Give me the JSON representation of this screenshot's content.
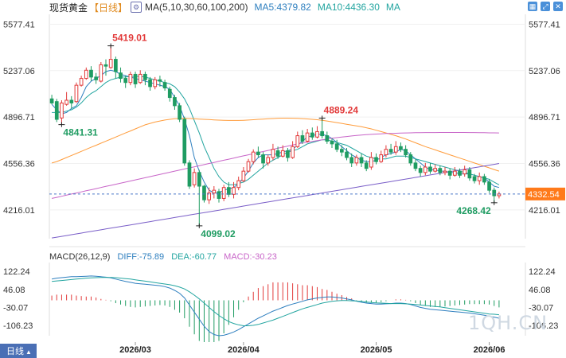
{
  "header": {
    "title": "现货黄金",
    "period": "【日线】",
    "indicator": "MA(5,10,30,60,100,200)",
    "ma5": "MA5:4379.82",
    "ma10": "MA10:4436.30",
    "ma": "MA"
  },
  "macd_header": {
    "name": "MACD(26,12,9)",
    "diff": "DIFF:-75.89",
    "dea": "DEA:-60.77",
    "macd": "MACD:-30.23"
  },
  "tab": {
    "label": "日线"
  },
  "watermark": "1QH.CN",
  "colors": {
    "up": "#e23a3a",
    "down": "#1f9c62",
    "ma5": "#2e7fbf",
    "ma10": "#23a5a0",
    "ma30": "#ff9c3b",
    "ma60": "#c865c8",
    "ma100": "#7a5ec8",
    "last_price_tag": "#ff7a1a"
  },
  "chart_data": [
    {
      "type": "candlestick",
      "title": "现货黄金",
      "x_labels": [
        "2026/03",
        "2026/04",
        "2026/05",
        "2026/06"
      ],
      "y_ticks": [
        5577.41,
        5237.06,
        4896.71,
        4556.36,
        4216.01
      ],
      "ylim": [
        4005,
        5650
      ],
      "last_price": "4332.54",
      "annotations": [
        {
          "label": "5419.01",
          "kind": "high"
        },
        {
          "label": "4841.31",
          "kind": "low"
        },
        {
          "label": "4889.24",
          "kind": "high"
        },
        {
          "label": "4099.02",
          "kind": "low"
        },
        {
          "label": "4268.42",
          "kind": "low"
        }
      ],
      "candles": [
        [
          5030,
          5000,
          5060,
          4990
        ],
        [
          5010,
          4880,
          5030,
          4860
        ],
        [
          4890,
          5000,
          5020,
          4840
        ],
        [
          4990,
          5020,
          5080,
          4980
        ],
        [
          5020,
          5000,
          5050,
          4960
        ],
        [
          5010,
          5130,
          5150,
          5000
        ],
        [
          5130,
          5180,
          5200,
          5120
        ],
        [
          5180,
          5240,
          5260,
          5170
        ],
        [
          5240,
          5190,
          5270,
          5160
        ],
        [
          5190,
          5170,
          5220,
          5140
        ],
        [
          5160,
          5280,
          5300,
          5150
        ],
        [
          5280,
          5270,
          5320,
          5200
        ],
        [
          5260,
          5320,
          5419,
          5250
        ],
        [
          5320,
          5230,
          5340,
          5180
        ],
        [
          5220,
          5180,
          5260,
          5150
        ],
        [
          5180,
          5150,
          5200,
          5110
        ],
        [
          5150,
          5210,
          5230,
          5130
        ],
        [
          5210,
          5140,
          5230,
          5110
        ],
        [
          5150,
          5210,
          5240,
          5140
        ],
        [
          5210,
          5170,
          5230,
          5130
        ],
        [
          5170,
          5120,
          5190,
          5090
        ],
        [
          5120,
          5170,
          5190,
          5100
        ],
        [
          5170,
          5160,
          5200,
          5120
        ],
        [
          5150,
          5110,
          5170,
          5090
        ],
        [
          5100,
          5040,
          5120,
          5010
        ],
        [
          5040,
          4980,
          5060,
          4950
        ],
        [
          4980,
          4880,
          5000,
          4860
        ],
        [
          4880,
          4560,
          4900,
          4540
        ],
        [
          4560,
          4390,
          4580,
          4370
        ],
        [
          4400,
          4490,
          4520,
          4380
        ],
        [
          4490,
          4390,
          4510,
          4099
        ],
        [
          4390,
          4290,
          4400,
          4270
        ],
        [
          4290,
          4340,
          4380,
          4260
        ],
        [
          4340,
          4360,
          4390,
          4300
        ],
        [
          4350,
          4300,
          4370,
          4270
        ],
        [
          4300,
          4380,
          4400,
          4280
        ],
        [
          4380,
          4330,
          4420,
          4310
        ],
        [
          4330,
          4380,
          4420,
          4300
        ],
        [
          4380,
          4430,
          4460,
          4360
        ],
        [
          4430,
          4500,
          4530,
          4420
        ],
        [
          4500,
          4570,
          4590,
          4490
        ],
        [
          4570,
          4640,
          4660,
          4550
        ],
        [
          4640,
          4620,
          4680,
          4600
        ],
        [
          4620,
          4560,
          4640,
          4520
        ],
        [
          4560,
          4600,
          4620,
          4540
        ],
        [
          4600,
          4660,
          4700,
          4580
        ],
        [
          4650,
          4610,
          4680,
          4590
        ],
        [
          4610,
          4650,
          4690,
          4600
        ],
        [
          4650,
          4600,
          4670,
          4570
        ],
        [
          4600,
          4680,
          4720,
          4590
        ],
        [
          4680,
          4760,
          4790,
          4670
        ],
        [
          4760,
          4720,
          4800,
          4700
        ],
        [
          4720,
          4780,
          4810,
          4710
        ],
        [
          4780,
          4750,
          4820,
          4730
        ],
        [
          4750,
          4790,
          4830,
          4740
        ],
        [
          4790,
          4760,
          4889,
          4740
        ],
        [
          4760,
          4720,
          4790,
          4700
        ],
        [
          4720,
          4700,
          4740,
          4670
        ],
        [
          4700,
          4660,
          4730,
          4640
        ],
        [
          4660,
          4640,
          4690,
          4610
        ],
        [
          4640,
          4600,
          4670,
          4580
        ],
        [
          4600,
          4560,
          4630,
          4530
        ],
        [
          4560,
          4600,
          4620,
          4540
        ],
        [
          4600,
          4560,
          4630,
          4530
        ],
        [
          4560,
          4520,
          4580,
          4500
        ],
        [
          4530,
          4600,
          4640,
          4510
        ],
        [
          4600,
          4570,
          4630,
          4550
        ],
        [
          4570,
          4620,
          4650,
          4560
        ],
        [
          4620,
          4660,
          4690,
          4600
        ],
        [
          4660,
          4640,
          4700,
          4620
        ],
        [
          4640,
          4680,
          4720,
          4620
        ],
        [
          4680,
          4660,
          4710,
          4640
        ],
        [
          4660,
          4620,
          4690,
          4600
        ],
        [
          4620,
          4560,
          4640,
          4540
        ],
        [
          4560,
          4520,
          4590,
          4500
        ],
        [
          4520,
          4490,
          4540,
          4460
        ],
        [
          4490,
          4530,
          4560,
          4470
        ],
        [
          4530,
          4500,
          4560,
          4480
        ],
        [
          4500,
          4520,
          4550,
          4490
        ],
        [
          4520,
          4490,
          4540,
          4470
        ],
        [
          4490,
          4500,
          4530,
          4470
        ],
        [
          4500,
          4470,
          4520,
          4440
        ],
        [
          4470,
          4500,
          4530,
          4460
        ],
        [
          4500,
          4470,
          4520,
          4450
        ],
        [
          4480,
          4510,
          4540,
          4460
        ],
        [
          4510,
          4450,
          4530,
          4430
        ],
        [
          4460,
          4430,
          4480,
          4410
        ],
        [
          4430,
          4460,
          4490,
          4400
        ],
        [
          4460,
          4420,
          4480,
          4400
        ],
        [
          4420,
          4360,
          4440,
          4340
        ],
        [
          4360,
          4320,
          4380,
          4268
        ],
        [
          4320,
          4333,
          4350,
          4300
        ]
      ],
      "ma_lines": {
        "MA5": [
          4990,
          4950,
          4920,
          4930,
          4960,
          4980,
          5040,
          5120,
          5160,
          5180,
          5200,
          5230,
          5240,
          5230,
          5210,
          5200,
          5190,
          5180,
          5170,
          5160,
          5150,
          5140,
          5130,
          5120,
          5100,
          5040,
          4980,
          4880,
          4760,
          4600,
          4500,
          4420,
          4360,
          4340,
          4340,
          4360,
          4370,
          4380,
          4410,
          4450,
          4500,
          4560,
          4600,
          4620,
          4620,
          4620,
          4630,
          4640,
          4650,
          4660,
          4690,
          4720,
          4750,
          4760,
          4770,
          4770,
          4760,
          4740,
          4710,
          4680,
          4650,
          4620,
          4600,
          4580,
          4570,
          4570,
          4580,
          4600,
          4620,
          4630,
          4640,
          4660,
          4650,
          4620,
          4590,
          4560,
          4530,
          4510,
          4510,
          4500,
          4500,
          4490,
          4490,
          4480,
          4480,
          4480,
          4470,
          4460,
          4450,
          4420,
          4390,
          4380
        ],
        "MA10": [
          4930,
          4930,
          4930,
          4940,
          4950,
          4970,
          5000,
          5040,
          5070,
          5090,
          5120,
          5150,
          5170,
          5180,
          5190,
          5190,
          5195,
          5195,
          5195,
          5190,
          5180,
          5170,
          5160,
          5150,
          5140,
          5120,
          5080,
          5030,
          4960,
          4870,
          4780,
          4680,
          4600,
          4520,
          4460,
          4420,
          4400,
          4400,
          4410,
          4420,
          4440,
          4470,
          4500,
          4530,
          4560,
          4580,
          4600,
          4620,
          4640,
          4650,
          4660,
          4680,
          4700,
          4710,
          4720,
          4730,
          4730,
          4720,
          4710,
          4700,
          4690,
          4670,
          4650,
          4630,
          4610,
          4600,
          4590,
          4590,
          4590,
          4600,
          4610,
          4610,
          4610,
          4600,
          4590,
          4580,
          4570,
          4560,
          4550,
          4540,
          4530,
          4520,
          4510,
          4500,
          4490,
          4480,
          4470,
          4460,
          4450,
          4440,
          4420,
          4400
        ],
        "MA30": [
          4560,
          4570,
          4585,
          4600,
          4615,
          4630,
          4645,
          4660,
          4675,
          4690,
          4705,
          4720,
          4735,
          4750,
          4765,
          4780,
          4795,
          4810,
          4825,
          4840,
          4850,
          4860,
          4868,
          4875,
          4880,
          4884,
          4886,
          4887,
          4886,
          4884,
          4882,
          4880,
          4878,
          4876,
          4874,
          4873,
          4872,
          4872,
          4872,
          4873,
          4875,
          4877,
          4880,
          4882,
          4884,
          4886,
          4888,
          4889,
          4889,
          4888,
          4887,
          4885,
          4883,
          4880,
          4877,
          4873,
          4868,
          4862,
          4856,
          4850,
          4844,
          4838,
          4832,
          4826,
          4818,
          4810,
          4800,
          4790,
          4780,
          4770,
          4760,
          4748,
          4736,
          4722,
          4708,
          4694,
          4680,
          4668,
          4656,
          4644,
          4632,
          4620,
          4608,
          4596,
          4584,
          4572,
          4560,
          4548,
          4536,
          4524,
          4512,
          4500
        ],
        "MA60": [
          4300,
          4308,
          4316,
          4324,
          4332,
          4340,
          4348,
          4356,
          4364,
          4372,
          4380,
          4388,
          4396,
          4404,
          4412,
          4420,
          4428,
          4436,
          4444,
          4452,
          4460,
          4468,
          4476,
          4484,
          4492,
          4500,
          4508,
          4516,
          4524,
          4532,
          4540,
          4548,
          4556,
          4564,
          4572,
          4580,
          4588,
          4596,
          4604,
          4612,
          4620,
          4628,
          4636,
          4644,
          4652,
          4660,
          4668,
          4676,
          4684,
          4692,
          4700,
          4706,
          4712,
          4718,
          4724,
          4730,
          4736,
          4741,
          4746,
          4750,
          4754,
          4758,
          4762,
          4765,
          4768,
          4770,
          4772,
          4774,
          4776,
          4777,
          4778,
          4779,
          4780,
          4781,
          4782,
          4782,
          4783,
          4783,
          4783,
          4784,
          4784,
          4784,
          4784,
          4784,
          4784,
          4783,
          4783,
          4782,
          4782,
          4781,
          4781,
          4780
        ],
        "MA100": [
          4010,
          4016,
          4022,
          4028,
          4034,
          4040,
          4046,
          4052,
          4058,
          4064,
          4070,
          4076,
          4082,
          4088,
          4094,
          4100,
          4106,
          4112,
          4118,
          4124,
          4130,
          4136,
          4142,
          4148,
          4154,
          4160,
          4166,
          4172,
          4178,
          4184,
          4190,
          4196,
          4202,
          4208,
          4214,
          4220,
          4226,
          4232,
          4238,
          4244,
          4250,
          4256,
          4262,
          4268,
          4274,
          4280,
          4286,
          4292,
          4298,
          4304,
          4310,
          4316,
          4322,
          4328,
          4334,
          4340,
          4346,
          4352,
          4358,
          4364,
          4370,
          4376,
          4382,
          4388,
          4394,
          4400,
          4406,
          4412,
          4418,
          4424,
          4430,
          4436,
          4442,
          4448,
          4454,
          4460,
          4466,
          4472,
          4478,
          4484,
          4490,
          4496,
          4502,
          4508,
          4514,
          4520,
          4526,
          4532,
          4538,
          4544,
          4550,
          4556
        ]
      }
    },
    {
      "type": "macd",
      "title": "MACD(26,12,9)",
      "y_ticks": [
        122.24,
        46.08,
        -30.07,
        -106.23
      ],
      "ylim": [
        -150,
        160
      ],
      "diff": [
        90,
        94,
        96,
        98,
        100,
        100,
        101,
        102,
        103,
        102,
        100,
        98,
        95,
        90,
        85,
        80,
        76,
        72,
        70,
        68,
        66,
        64,
        62,
        58,
        52,
        42,
        30,
        10,
        -20,
        -50,
        -80,
        -110,
        -132,
        -145,
        -150,
        -148,
        -142,
        -134,
        -124,
        -112,
        -100,
        -88,
        -76,
        -66,
        -56,
        -46,
        -38,
        -30,
        -22,
        -16,
        -10,
        -4,
        2,
        6,
        10,
        12,
        14,
        14,
        12,
        10,
        6,
        2,
        -4,
        -8,
        -12,
        -14,
        -16,
        -16,
        -15,
        -14,
        -12,
        -12,
        -14,
        -18,
        -24,
        -30,
        -34,
        -38,
        -40,
        -42,
        -44,
        -46,
        -48,
        -50,
        -52,
        -54,
        -57,
        -60,
        -63,
        -67,
        -71,
        -76
      ],
      "dea": [
        80,
        82,
        84,
        86,
        88,
        90,
        92,
        94,
        95,
        96,
        97,
        97,
        97,
        96,
        94,
        92,
        90,
        87,
        84,
        81,
        78,
        75,
        72,
        69,
        66,
        62,
        56,
        48,
        36,
        22,
        6,
        -12,
        -30,
        -48,
        -64,
        -78,
        -90,
        -98,
        -104,
        -108,
        -108,
        -106,
        -102,
        -96,
        -90,
        -84,
        -76,
        -68,
        -60,
        -52,
        -44,
        -36,
        -30,
        -24,
        -18,
        -12,
        -8,
        -4,
        -2,
        -1,
        -1,
        -2,
        -3,
        -5,
        -7,
        -9,
        -11,
        -12,
        -13,
        -14,
        -14,
        -14,
        -15,
        -16,
        -18,
        -20,
        -22,
        -24,
        -26,
        -28,
        -31,
        -34,
        -37,
        -40,
        -43,
        -46,
        -49,
        -52,
        -55,
        -58,
        -59,
        -61
      ]
    }
  ]
}
